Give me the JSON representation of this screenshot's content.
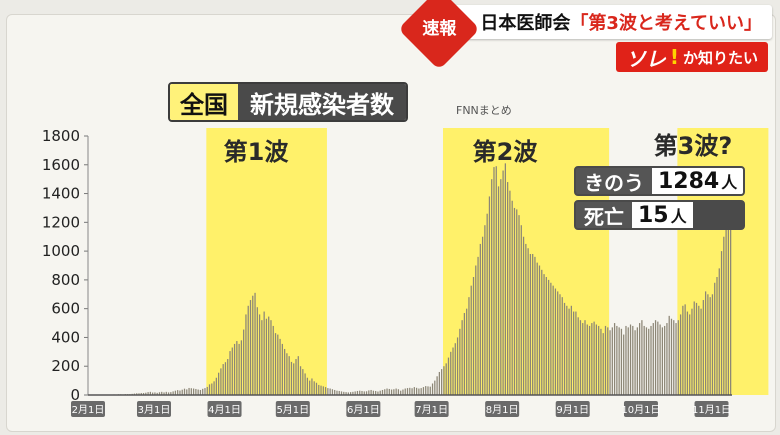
{
  "banner": {
    "flash_label": "速報",
    "headline_prefix": "日本医師会",
    "headline_quote": "「第3波と考えていい」",
    "sub_big": "ソレ",
    "sub_bang": "!",
    "sub_small": "か知りたい"
  },
  "title": {
    "part1": "全国",
    "part2": "新規感染者数"
  },
  "source": "FNNまとめ",
  "callouts": {
    "yesterday_label": "きのう",
    "yesterday_value": "1284",
    "yesterday_unit": "人",
    "deaths_label": "死亡",
    "deaths_value": "15",
    "deaths_unit": "人"
  },
  "colors": {
    "bar": "#8c8676",
    "wave_band": "#fff16a",
    "flash_red": "#d9271c"
  },
  "chart_data": {
    "type": "bar",
    "title": "全国 新規感染者数",
    "ylim": [
      0,
      1800
    ],
    "yticks": [
      0,
      200,
      400,
      600,
      800,
      1000,
      1200,
      1400,
      1600,
      1800
    ],
    "xticks": [
      "2月1日",
      "3月1日",
      "4月1日",
      "5月1日",
      "6月1日",
      "7月1日",
      "8月1日",
      "9月1日",
      "10月1日",
      "11月1日"
    ],
    "x_start": "2月1日",
    "wave_labels": [
      "第1波",
      "第2波",
      "第3波?"
    ],
    "wave_bands": [
      {
        "label": "第1波",
        "from_day": 52,
        "to_day": 105
      },
      {
        "label": "第2波",
        "from_day": 156,
        "to_day": 229
      },
      {
        "label": "第3波?",
        "from_day": 259,
        "to_day": 299
      }
    ],
    "values": [
      1,
      1,
      2,
      2,
      3,
      2,
      2,
      3,
      1,
      2,
      3,
      4,
      3,
      5,
      5,
      4,
      6,
      6,
      6,
      8,
      10,
      12,
      12,
      14,
      14,
      16,
      20,
      22,
      17,
      18,
      15,
      19,
      22,
      18,
      22,
      18,
      20,
      25,
      30,
      34,
      31,
      37,
      44,
      39,
      49,
      47,
      45,
      42,
      38,
      35,
      43,
      48,
      56,
      74,
      80,
      95,
      120,
      155,
      185,
      215,
      228,
      250,
      305,
      330,
      355,
      375,
      355,
      380,
      455,
      560,
      620,
      660,
      690,
      710,
      610,
      560,
      520,
      580,
      530,
      545,
      520,
      480,
      430,
      420,
      390,
      355,
      320,
      290,
      270,
      230,
      220,
      250,
      270,
      200,
      180,
      150,
      120,
      100,
      115,
      95,
      85,
      70,
      65,
      60,
      55,
      48,
      45,
      40,
      35,
      30,
      28,
      25,
      22,
      20,
      18,
      20,
      22,
      25,
      28,
      30,
      28,
      25,
      26,
      32,
      35,
      30,
      28,
      24,
      30,
      35,
      40,
      45,
      42,
      38,
      40,
      45,
      40,
      30,
      38,
      45,
      48,
      50,
      47,
      55,
      50,
      45,
      48,
      55,
      62,
      60,
      58,
      80,
      100,
      130,
      160,
      180,
      200,
      220,
      260,
      300,
      330,
      360,
      400,
      460,
      520,
      570,
      600,
      680,
      760,
      820,
      900,
      960,
      1050,
      1100,
      1180,
      1260,
      1380,
      1500,
      1584,
      1590,
      1450,
      1500,
      1560,
      1610,
      1480,
      1420,
      1350,
      1300,
      1290,
      1250,
      1180,
      1100,
      1050,
      1020,
      980,
      980,
      960,
      920,
      900,
      870,
      840,
      820,
      800,
      780,
      760,
      740,
      720,
      700,
      680,
      640,
      620,
      600,
      620,
      580,
      580,
      540,
      520,
      500,
      520,
      490,
      480,
      500,
      510,
      490,
      480,
      460,
      430,
      480,
      470,
      450,
      470,
      500,
      480,
      470,
      460,
      420,
      480,
      470,
      490,
      480,
      450,
      470,
      500,
      520,
      480,
      470,
      460,
      480,
      500,
      520,
      510,
      490,
      470,
      480,
      500,
      550,
      530,
      520,
      500,
      520,
      560,
      620,
      630,
      580,
      560,
      600,
      650,
      640,
      620,
      600,
      660,
      720,
      700,
      680,
      700,
      780,
      820,
      880,
      1000,
      1100,
      1200,
      1340,
      1284
    ]
  }
}
